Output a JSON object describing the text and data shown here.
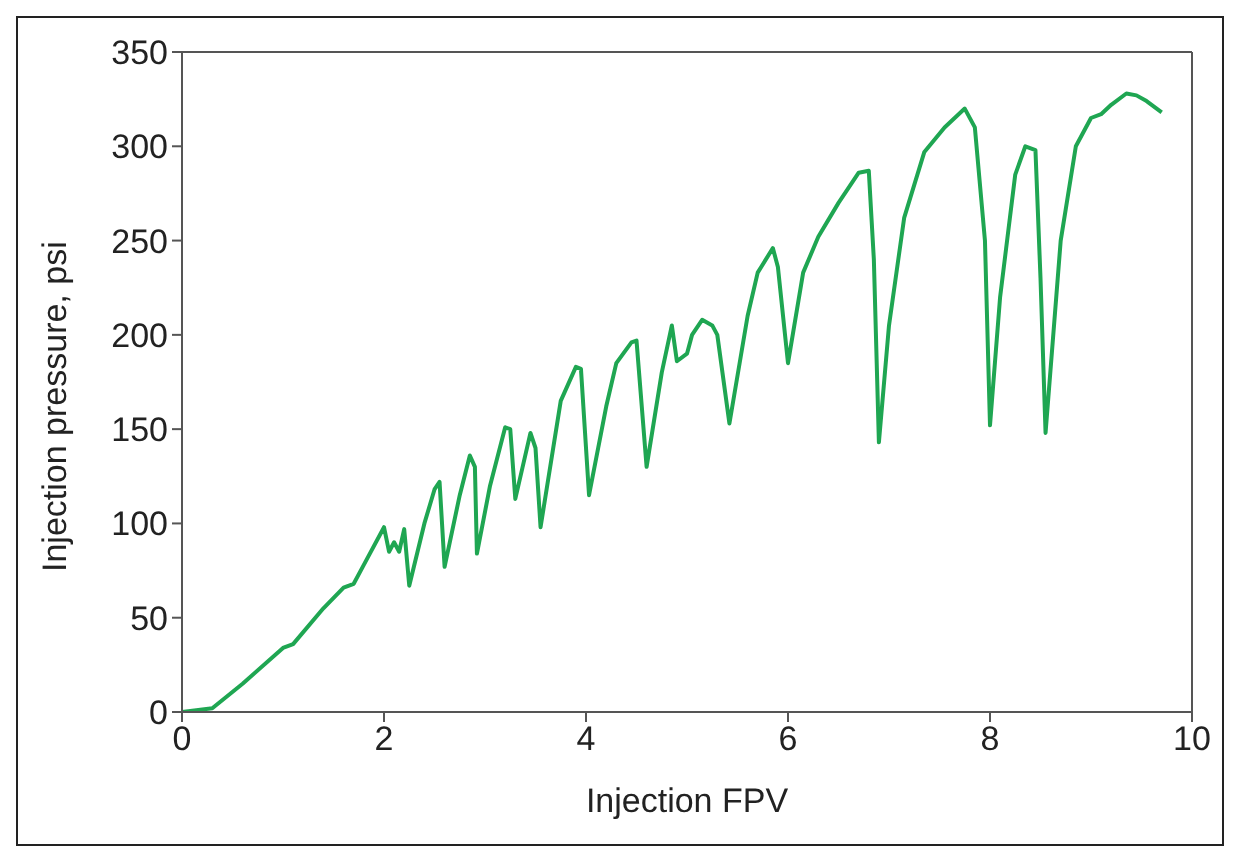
{
  "chart_data": {
    "type": "line",
    "xlabel": "Injection FPV",
    "ylabel": "Injection pressure, psi",
    "xlim": [
      0,
      10
    ],
    "xticks": [
      0,
      2,
      4,
      6,
      8,
      10
    ],
    "ylim": [
      0,
      350
    ],
    "yticks": [
      0,
      50,
      100,
      150,
      200,
      250,
      300,
      350
    ],
    "grid": false,
    "legend": false,
    "marker": "none",
    "line_style": "solid",
    "series": [
      {
        "color": "#1fa652",
        "x": [
          0,
          0.3,
          0.6,
          1.0,
          1.1,
          1.4,
          1.6,
          1.7,
          1.8,
          2.0,
          2.05,
          2.1,
          2.15,
          2.2,
          2.25,
          2.4,
          2.5,
          2.55,
          2.6,
          2.75,
          2.85,
          2.9,
          2.92,
          3.05,
          3.2,
          3.25,
          3.3,
          3.45,
          3.5,
          3.55,
          3.75,
          3.9,
          3.95,
          4.03,
          4.2,
          4.3,
          4.45,
          4.5,
          4.6,
          4.75,
          4.85,
          4.9,
          5.0,
          5.05,
          5.15,
          5.25,
          5.3,
          5.42,
          5.6,
          5.7,
          5.85,
          5.9,
          6.0,
          6.15,
          6.3,
          6.5,
          6.7,
          6.8,
          6.85,
          6.9,
          7.0,
          7.15,
          7.35,
          7.55,
          7.75,
          7.85,
          7.95,
          8.0,
          8.1,
          8.25,
          8.35,
          8.45,
          8.5,
          8.55,
          8.7,
          8.85,
          9.0,
          9.1,
          9.2,
          9.35,
          9.45,
          9.55,
          9.7
        ],
        "values": [
          0,
          2,
          15,
          34,
          36,
          55,
          66,
          68,
          78,
          98,
          85,
          90,
          85,
          97,
          67,
          100,
          118,
          122,
          77,
          115,
          136,
          130,
          84,
          120,
          151,
          150,
          113,
          148,
          140,
          98,
          165,
          183,
          182,
          115,
          162,
          185,
          196,
          197,
          130,
          180,
          205,
          186,
          190,
          200,
          208,
          205,
          200,
          153,
          210,
          233,
          246,
          236,
          185,
          233,
          252,
          270,
          286,
          287,
          240,
          143,
          205,
          262,
          297,
          310,
          320,
          310,
          250,
          152,
          220,
          285,
          300,
          298,
          230,
          148,
          250,
          300,
          315,
          317,
          322,
          328,
          327,
          324,
          318
        ]
      }
    ]
  }
}
